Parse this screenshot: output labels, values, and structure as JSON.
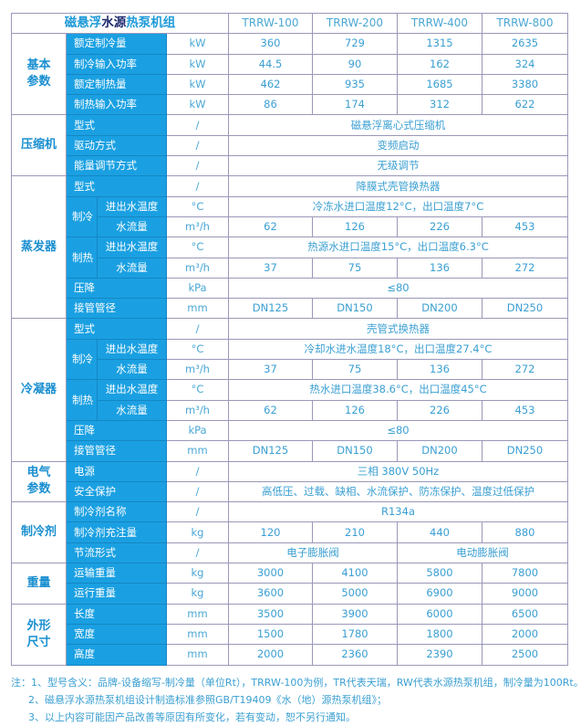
{
  "title": {
    "part1": "磁悬浮",
    "part2": "水源",
    "part3": "热泵机组"
  },
  "models": [
    "TRRW-100",
    "TRRW-200",
    "TRRW-400",
    "TRRW-800"
  ],
  "sections": [
    {
      "group": "基本\n参数",
      "rows": [
        {
          "param": "额定制冷量",
          "unit": "kW",
          "values": [
            {
              "text": "360"
            },
            {
              "text": "729"
            },
            {
              "text": "1315"
            },
            {
              "text": "2635"
            }
          ]
        },
        {
          "param": "制冷输入功率",
          "unit": "kW",
          "values": [
            {
              "text": "44.5"
            },
            {
              "text": "90"
            },
            {
              "text": "162"
            },
            {
              "text": "324"
            }
          ]
        },
        {
          "param": "额定制热量",
          "unit": "kW",
          "values": [
            {
              "text": "462"
            },
            {
              "text": "935"
            },
            {
              "text": "1685"
            },
            {
              "text": "3380"
            }
          ]
        },
        {
          "param": "制热输入功率",
          "unit": "kW",
          "values": [
            {
              "text": "86"
            },
            {
              "text": "174"
            },
            {
              "text": "312"
            },
            {
              "text": "622"
            }
          ]
        }
      ]
    },
    {
      "group": "压缩机",
      "rows": [
        {
          "param": "型式",
          "unit": "/",
          "values": [
            {
              "text": "磁悬浮离心式压缩机",
              "span": 4
            }
          ]
        },
        {
          "param": "驱动方式",
          "unit": "/",
          "values": [
            {
              "text": "变频启动",
              "span": 4
            }
          ]
        },
        {
          "param": "能量调节方式",
          "unit": "/",
          "values": [
            {
              "text": "无级调节",
              "span": 4
            }
          ]
        }
      ]
    },
    {
      "group": "蒸发器",
      "rows": [
        {
          "param": "型式",
          "unit": "/",
          "values": [
            {
              "text": "降膜式壳管换热器",
              "span": 4
            }
          ]
        },
        {
          "sub": "制冷",
          "param": "进出水温度",
          "unit": "°C",
          "values": [
            {
              "text": "冷冻水进口温度12°C，出口温度7°C",
              "span": 4
            }
          ]
        },
        {
          "param": "水流量",
          "unit": "m³/h",
          "values": [
            {
              "text": "62"
            },
            {
              "text": "126"
            },
            {
              "text": "226"
            },
            {
              "text": "453"
            }
          ]
        },
        {
          "sub": "制热",
          "param": "进出水温度",
          "unit": "°C",
          "values": [
            {
              "text": "热源水进口温度15°C，出口温度6.3°C",
              "span": 4
            }
          ]
        },
        {
          "param": "水流量",
          "unit": "m³/h",
          "values": [
            {
              "text": "37"
            },
            {
              "text": "75"
            },
            {
              "text": "136"
            },
            {
              "text": "272"
            }
          ]
        },
        {
          "param": "压降",
          "unit": "kPa",
          "values": [
            {
              "text": "≤80",
              "span": 4
            }
          ]
        },
        {
          "param": "接管管径",
          "unit": "mm",
          "values": [
            {
              "text": "DN125"
            },
            {
              "text": "DN150"
            },
            {
              "text": "DN200"
            },
            {
              "text": "DN250"
            }
          ]
        }
      ]
    },
    {
      "group": "冷凝器",
      "rows": [
        {
          "param": "型式",
          "unit": "/",
          "values": [
            {
              "text": "壳管式换热器",
              "span": 4
            }
          ]
        },
        {
          "sub": "制冷",
          "param": "进出水温度",
          "unit": "°C",
          "values": [
            {
              "text": "冷却水进水温度18°C，出口温度27.4°C",
              "span": 4
            }
          ]
        },
        {
          "param": "水流量",
          "unit": "m³/h",
          "values": [
            {
              "text": "37"
            },
            {
              "text": "75"
            },
            {
              "text": "136"
            },
            {
              "text": "272"
            }
          ]
        },
        {
          "sub": "制热",
          "param": "进出水温度",
          "unit": "°C",
          "values": [
            {
              "text": "热水进口温度38.6°C，出口温度45°C",
              "span": 4
            }
          ]
        },
        {
          "param": "水流量",
          "unit": "m³/h",
          "values": [
            {
              "text": "62"
            },
            {
              "text": "126"
            },
            {
              "text": "226"
            },
            {
              "text": "453"
            }
          ]
        },
        {
          "param": "压降",
          "unit": "kPa",
          "values": [
            {
              "text": "≤80",
              "span": 4
            }
          ]
        },
        {
          "param": "接管管径",
          "unit": "mm",
          "values": [
            {
              "text": "DN125"
            },
            {
              "text": "DN150"
            },
            {
              "text": "DN200"
            },
            {
              "text": "DN250"
            }
          ]
        }
      ]
    },
    {
      "group": "电气\n参数",
      "rows": [
        {
          "param": "电源",
          "unit": "/",
          "values": [
            {
              "text": "三相 380V 50Hz",
              "span": 4
            }
          ]
        },
        {
          "param": "安全保护",
          "unit": "/",
          "values": [
            {
              "text": "高低压、过载、缺相、水流保护、防冻保护、温度过低保护",
              "span": 4
            }
          ]
        }
      ]
    },
    {
      "group": "制冷剂",
      "rows": [
        {
          "param": "制冷剂名称",
          "unit": "/",
          "values": [
            {
              "text": "R134a",
              "span": 4
            }
          ]
        },
        {
          "param": "制冷剂充注量",
          "unit": "kg",
          "values": [
            {
              "text": "120"
            },
            {
              "text": "210"
            },
            {
              "text": "440"
            },
            {
              "text": "880"
            }
          ]
        },
        {
          "param": "节流形式",
          "unit": "/",
          "values": [
            {
              "text": "电子膨胀阀",
              "span": 2
            },
            {
              "text": "电动膨胀阀",
              "span": 2
            }
          ]
        }
      ]
    },
    {
      "group": "重量",
      "rows": [
        {
          "param": "运输重量",
          "unit": "kg",
          "values": [
            {
              "text": "3000"
            },
            {
              "text": "4100"
            },
            {
              "text": "5800"
            },
            {
              "text": "7800"
            }
          ]
        },
        {
          "param": "运行重量",
          "unit": "kg",
          "values": [
            {
              "text": "3600"
            },
            {
              "text": "5000"
            },
            {
              "text": "6900"
            },
            {
              "text": "9000"
            }
          ]
        }
      ]
    },
    {
      "group": "外形\n尺寸",
      "rows": [
        {
          "param": "长度",
          "unit": "mm",
          "values": [
            {
              "text": "3500"
            },
            {
              "text": "3900"
            },
            {
              "text": "6000"
            },
            {
              "text": "6500"
            }
          ]
        },
        {
          "param": "宽度",
          "unit": "mm",
          "values": [
            {
              "text": "1500"
            },
            {
              "text": "1780"
            },
            {
              "text": "1800"
            },
            {
              "text": "2000"
            }
          ]
        },
        {
          "param": "高度",
          "unit": "mm",
          "values": [
            {
              "text": "2000"
            },
            {
              "text": "2360"
            },
            {
              "text": "2390"
            },
            {
              "text": "2500"
            }
          ]
        }
      ]
    }
  ],
  "notes": [
    "注：1、型号含义：品牌-设备缩写-制冷量（单位Rt），TRRW-100为例，TR代表天瑞，RW代表水源热泵机组，制冷量为100Rt。",
    "2、磁悬浮水源热泵机组设计制造标准参照GB/T19409《水（地）源热泵机组》；",
    "3、以上内容可能因产品改善等原因有所变化，若有变动，恕不另行通知。"
  ]
}
